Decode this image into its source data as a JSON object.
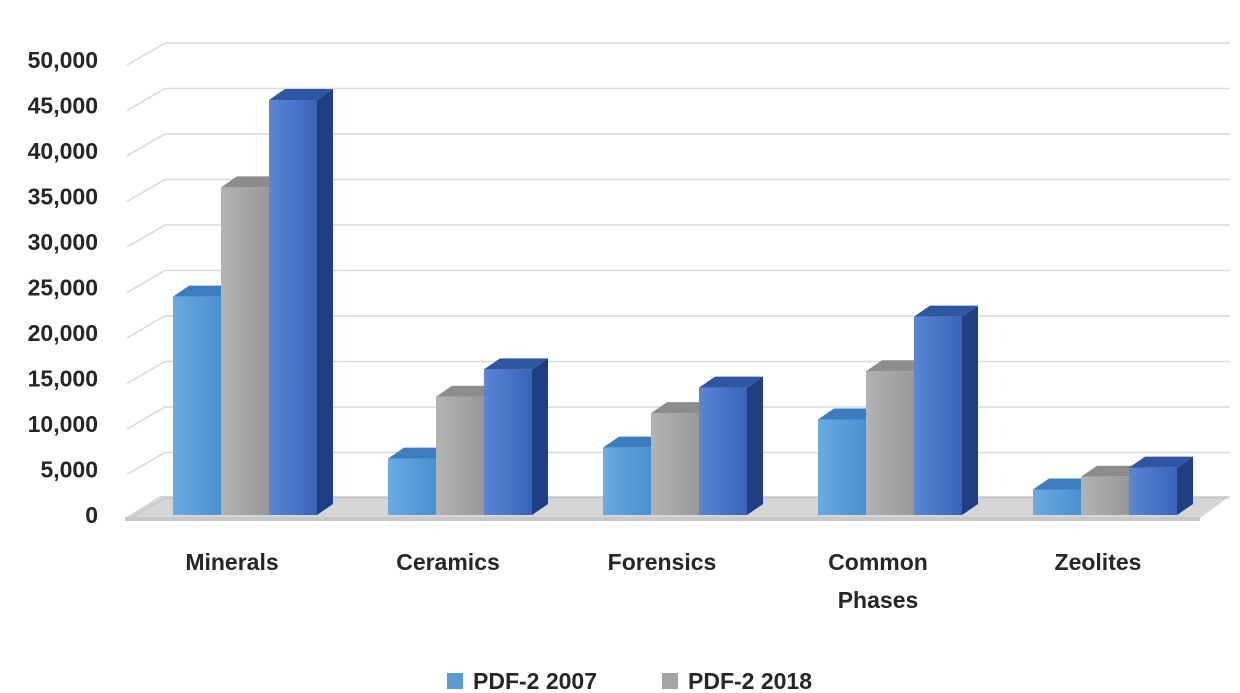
{
  "chart_data": {
    "type": "bar",
    "categories": [
      "Minerals",
      "Ceramics",
      "Forensics",
      "Common Phases",
      "Zeolites"
    ],
    "series": [
      {
        "name": "PDF-2 2007",
        "values": [
          24000,
          6200,
          7400,
          10500,
          2800
        ]
      },
      {
        "name": "PDF-2 2018",
        "values": [
          36000,
          13000,
          11200,
          15800,
          4200
        ]
      },
      {
        "name": "",
        "values": [
          45600,
          16000,
          14000,
          21800,
          5200
        ]
      }
    ],
    "legend_entries": [
      "PDF-2 2007",
      "PDF-2 2018"
    ],
    "y_tick_labels": [
      "0",
      "5,000",
      "10,000",
      "15,000",
      "20,000",
      "25,000",
      "30,000",
      "35,000",
      "40,000",
      "45,000",
      "50,000"
    ],
    "ylim": [
      0,
      52500
    ],
    "grid": true,
    "legend_position": "bottom",
    "title": "",
    "xlabel": "",
    "ylabel": "",
    "colors": {
      "series_front": [
        "#5b9bd5",
        "#a5a5a5",
        "#4472c4"
      ],
      "series_top": [
        "#3c7dc0",
        "#8c8c8c",
        "#2f56a3"
      ],
      "series_side": [
        "#2e6bab",
        "#7a7a7a",
        "#203f80"
      ],
      "grid": "#d9d9d9",
      "text": "#262626"
    }
  }
}
